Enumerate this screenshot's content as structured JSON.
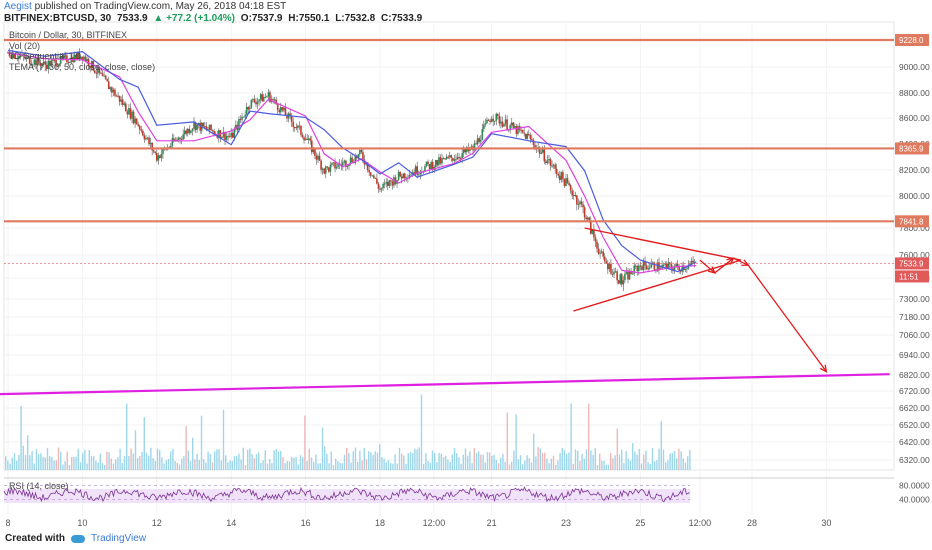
{
  "header": {
    "author": "Aegist",
    "published": "published on TradingView.com, May 26, 2018 04:18 EST",
    "symbol": "BITFINEX:BTCUSD, 30",
    "last": "7533.9",
    "change": "▲ +77.2 (+1.04%)",
    "open": "O:7537.9",
    "high": "H:7550.1",
    "low": "L:7532.8",
    "close": "C:7533.9"
  },
  "legend": {
    "title": "Bitcoin / Dollar, 30, BITFINEX",
    "vol": "Vol (20)",
    "td": "TD Sequential 1.0",
    "tema": "TEMA (7, 30, 50, close, close, close)"
  },
  "rsi_label": "RSI (14, close)",
  "footer": {
    "created_with": "Created with",
    "brand": "TradingView"
  },
  "colors": {
    "candle_up": "#2e8b57",
    "candle_down": "#c0392b",
    "resistance": "#e07a5f",
    "trendline": "#e31a1c",
    "support": "#e020e0",
    "ma_fast": "#e040e0",
    "ma_slow": "#4a5ce0",
    "volume": "#7ec8e3",
    "rsi_line": "#7b3294",
    "rsi_band": "#e9d5f7"
  },
  "chart_data": [
    {
      "type": "line",
      "title": "BITFINEX:BTCUSD, 30",
      "y_axis_ticks": [
        6320,
        6420,
        6520,
        6620,
        6720,
        6820,
        6940,
        7060,
        7180,
        7300,
        7420,
        7600,
        7800,
        8000,
        8200,
        8400,
        8600,
        8800,
        9000,
        9228
      ],
      "x_axis_ticks": [
        "8",
        "10",
        "12",
        "14",
        "16",
        "18",
        "12:00",
        "21",
        "23",
        "25",
        "12:00",
        "28",
        "30"
      ],
      "price_labels": [
        "9228.0",
        "8365.9",
        "7841.8",
        "7533.9",
        "11:51"
      ],
      "horizontal_levels": [
        9228.0,
        8365.9,
        7841.8
      ],
      "last_price": 7533.9,
      "price_path": [
        {
          "x": "8",
          "y": 9120
        },
        {
          "x": "9",
          "y": 9020
        },
        {
          "x": "10",
          "y": 9100
        },
        {
          "x": "11",
          "y": 8750
        },
        {
          "x": "11.5",
          "y": 8550
        },
        {
          "x": "12",
          "y": 8300
        },
        {
          "x": "13",
          "y": 8550
        },
        {
          "x": "14",
          "y": 8450
        },
        {
          "x": "14.5",
          "y": 8720
        },
        {
          "x": "15",
          "y": 8780
        },
        {
          "x": "16",
          "y": 8450
        },
        {
          "x": "16.5",
          "y": 8200
        },
        {
          "x": "17",
          "y": 8250
        },
        {
          "x": "17.5",
          "y": 8320
        },
        {
          "x": "18",
          "y": 8050
        },
        {
          "x": "18.5",
          "y": 8150
        },
        {
          "x": "19",
          "y": 8200
        },
        {
          "x": "20",
          "y": 8300
        },
        {
          "x": "20.5",
          "y": 8360
        },
        {
          "x": "21",
          "y": 8620
        },
        {
          "x": "22",
          "y": 8450
        },
        {
          "x": "23",
          "y": 8100
        },
        {
          "x": "23.5",
          "y": 7900
        },
        {
          "x": "24",
          "y": 7560
        },
        {
          "x": "24.5",
          "y": 7400
        },
        {
          "x": "25",
          "y": 7520
        },
        {
          "x": "26",
          "y": 7500
        },
        {
          "x": "26.5",
          "y": 7533.9
        }
      ],
      "drawn_lines": [
        {
          "name": "triangle-upper",
          "from": {
            "x": "23.5",
            "y": 7800
          },
          "to": {
            "x": "27.7",
            "y": 7560
          }
        },
        {
          "name": "triangle-lower",
          "from": {
            "x": "23.2",
            "y": 7220
          },
          "to": {
            "x": "27.7",
            "y": 7560
          }
        },
        {
          "name": "support-line",
          "from": {
            "x": "7.5",
            "y": 6700
          },
          "to": {
            "x": "31.7",
            "y": 6825
          }
        }
      ],
      "projection_arrows": [
        {
          "from": {
            "x": "26.6",
            "y": 7560
          },
          "to": {
            "x": "27.0",
            "y": 7460
          }
        },
        {
          "from": {
            "x": "27.0",
            "y": 7460
          },
          "to": {
            "x": "27.5",
            "y": 7575
          }
        },
        {
          "from": {
            "x": "27.5",
            "y": 7575
          },
          "to": {
            "x": "27.9",
            "y": 7520
          }
        },
        {
          "from": {
            "x": "27.9",
            "y": 7520
          },
          "to": {
            "x": "30.0",
            "y": 6840
          }
        }
      ]
    },
    {
      "type": "line",
      "title": "RSI (14, close)",
      "y_axis_ticks": [
        80.0,
        40.0
      ],
      "bands": [
        30,
        70
      ]
    }
  ]
}
